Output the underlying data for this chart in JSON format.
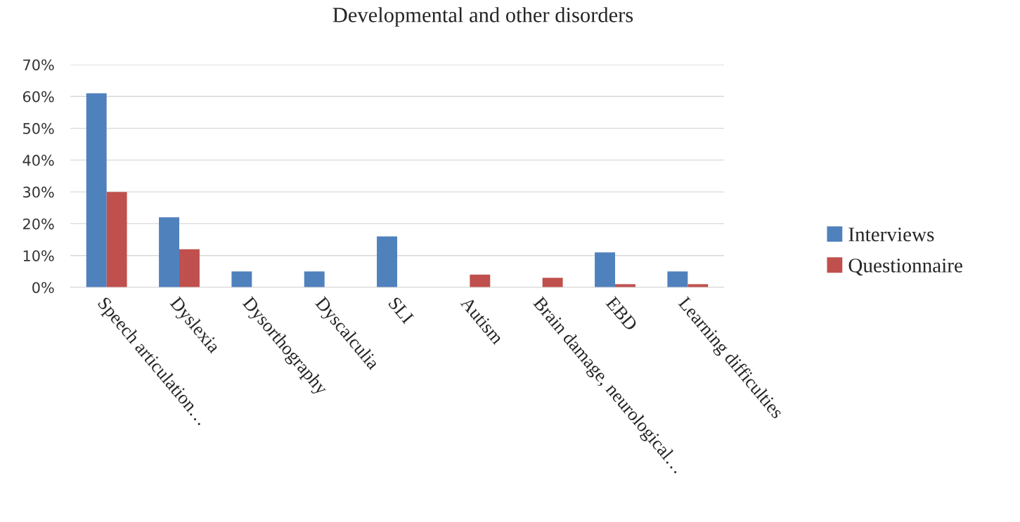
{
  "chart_data": {
    "type": "bar",
    "title": "Developmental and other disorders",
    "categories": [
      "Speech articulation…",
      "Dyslexia",
      "Dysorthography",
      "Dyscalculia",
      "SLI",
      "Autism",
      "Brain damage, neurological…",
      "EBD",
      "Learning difficulties"
    ],
    "series": [
      {
        "name": "Interviews",
        "color": "#4f81bd",
        "values": [
          61,
          22,
          5,
          5,
          16,
          null,
          null,
          11,
          5
        ]
      },
      {
        "name": "Questionnaire",
        "color": "#c0504d",
        "values": [
          30,
          12,
          null,
          null,
          null,
          4,
          3,
          1,
          1
        ]
      }
    ],
    "ylim": [
      0,
      70
    ],
    "yticks": [
      {
        "value": 0,
        "label": "0%"
      },
      {
        "value": 10,
        "label": "10%"
      },
      {
        "value": 20,
        "label": "20%"
      },
      {
        "value": 30,
        "label": "30%"
      },
      {
        "value": 40,
        "label": "40%"
      },
      {
        "value": 50,
        "label": "50%"
      },
      {
        "value": 60,
        "label": "60%"
      },
      {
        "value": 70,
        "label": "70%"
      }
    ],
    "grid": "y",
    "legend": "right"
  }
}
